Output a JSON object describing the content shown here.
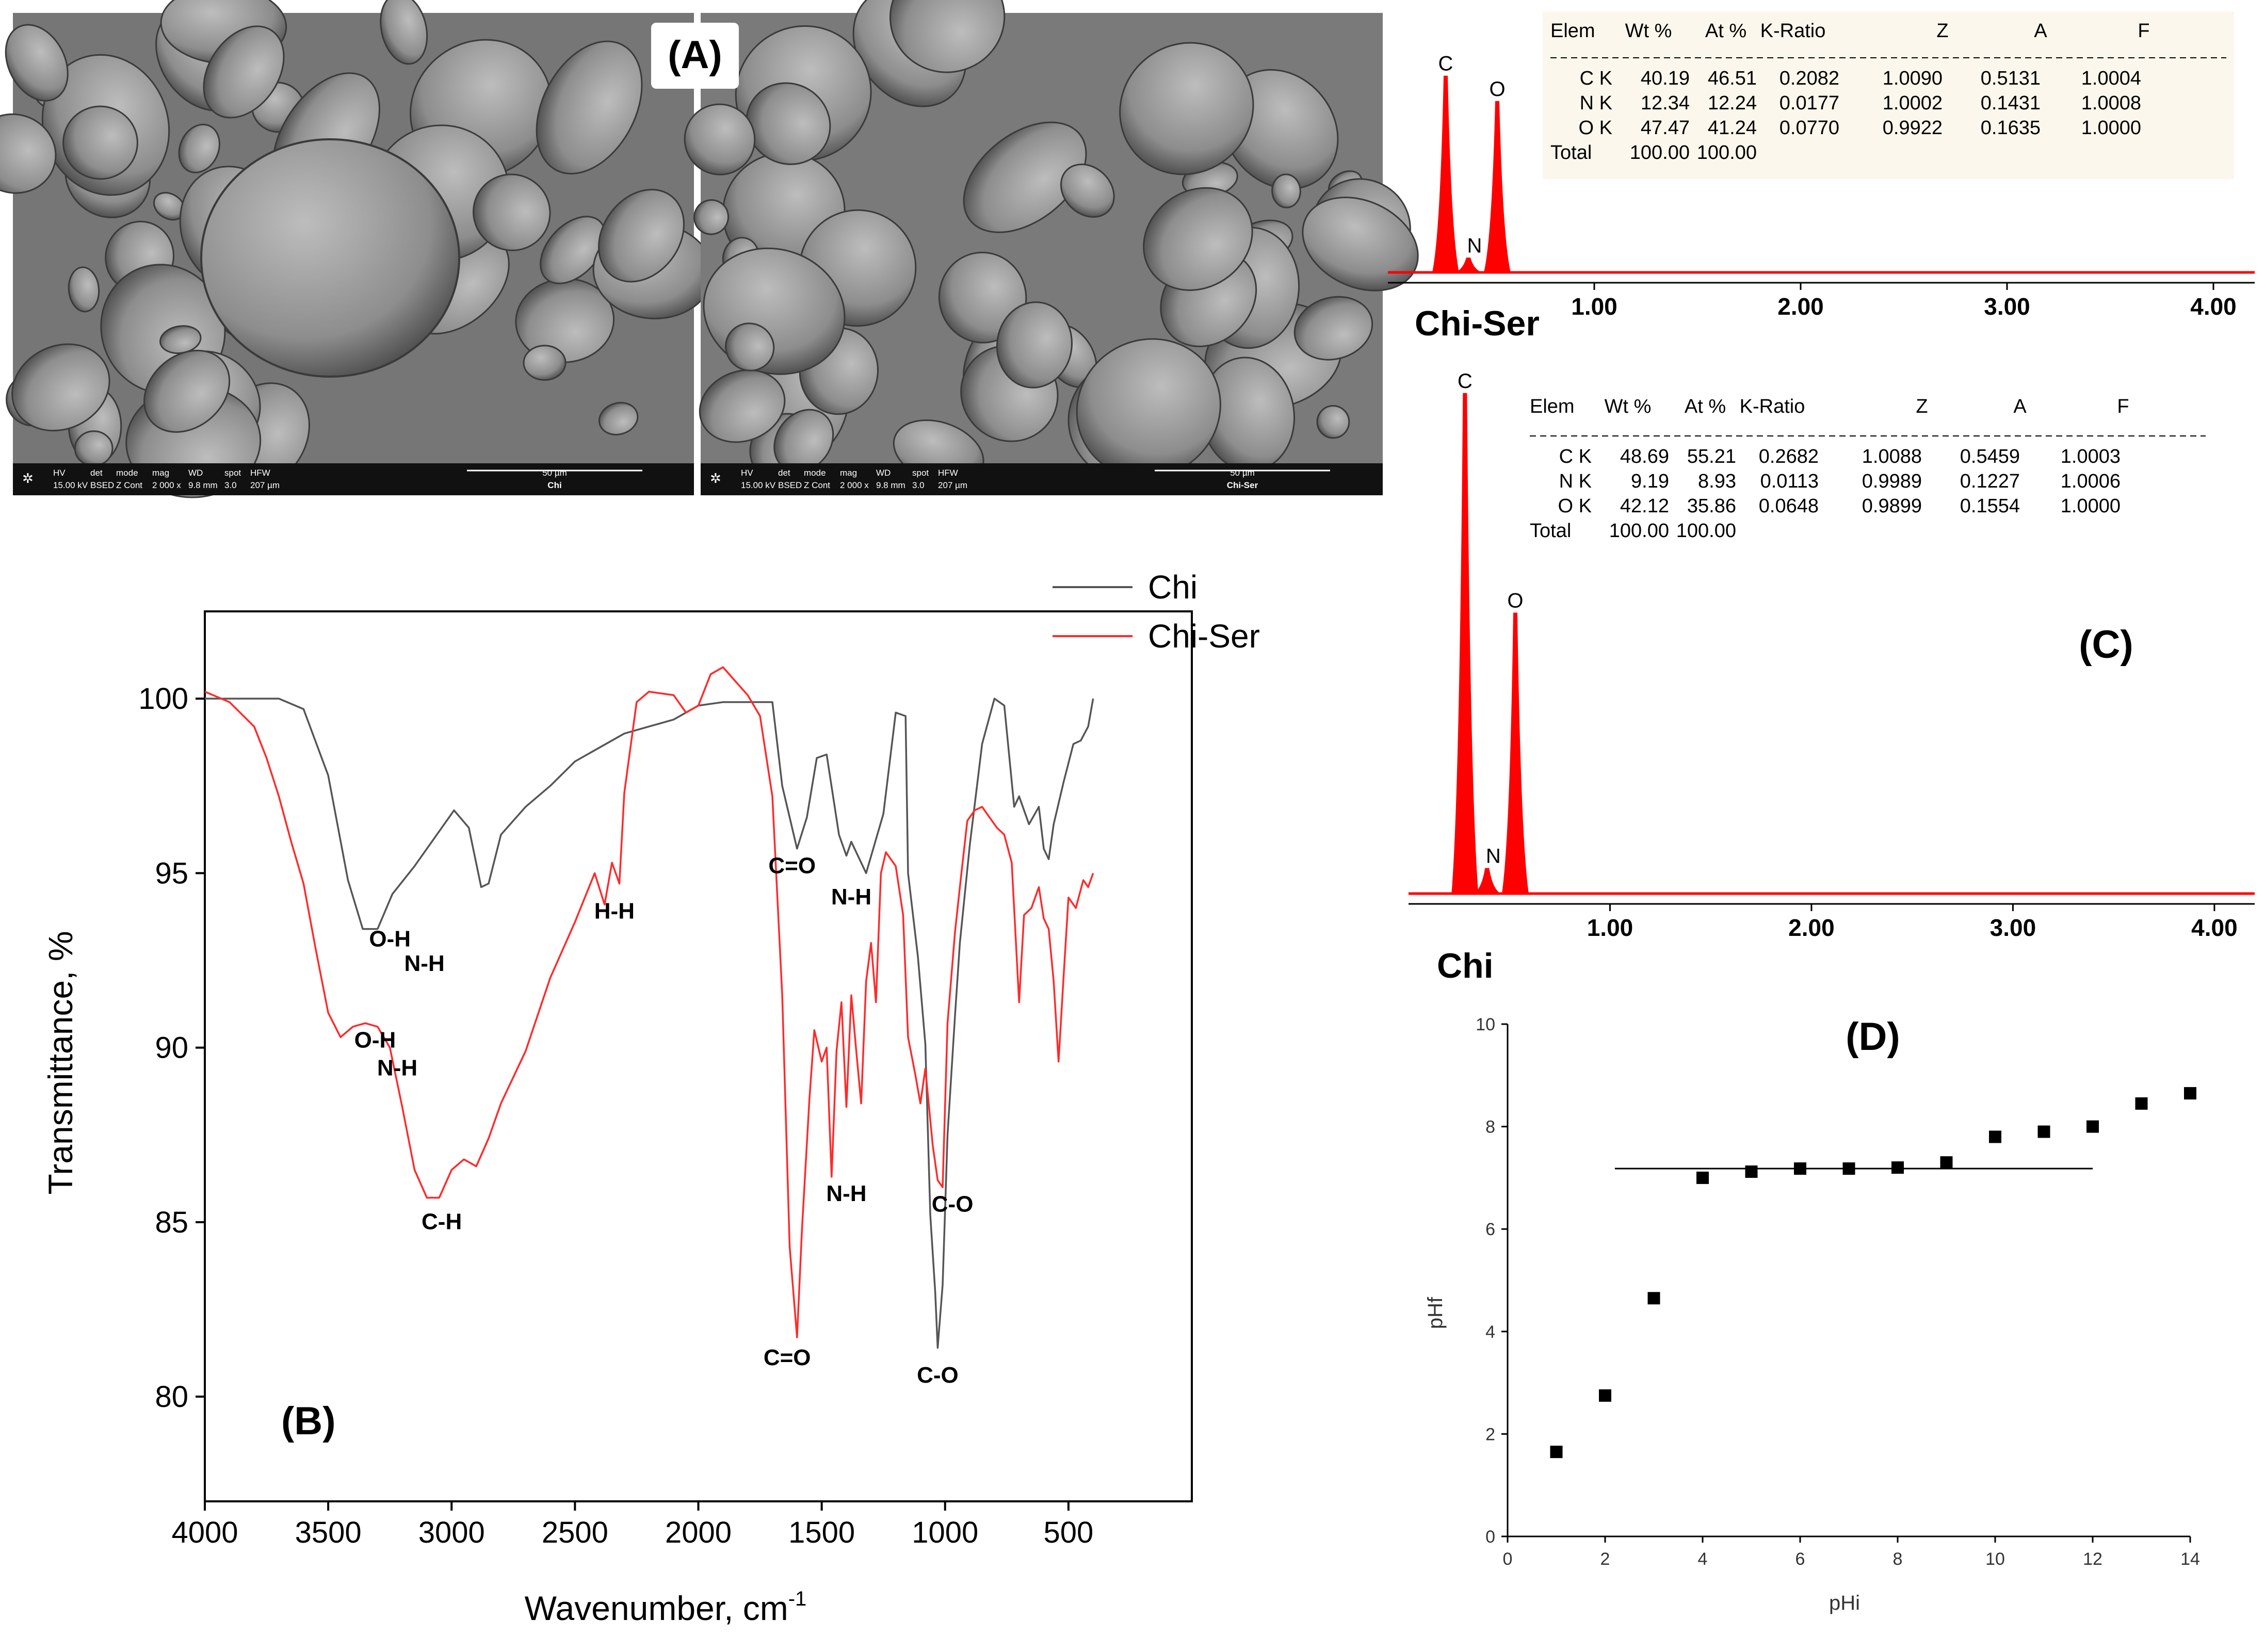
{
  "colors": {
    "chi": "#555555",
    "chi_ser": "#ff2a2a",
    "edx": "#ff0000",
    "axis": "#000000"
  },
  "panel_a": {
    "label": "(A)",
    "images": [
      {
        "hv": "HV",
        "hv_val": "15.00 kV",
        "det": "det",
        "det_val": "BSED",
        "mode": "mode",
        "mode_val": "Z Cont",
        "mag": "mag",
        "mag_val": "2 000 x",
        "wd": "WD",
        "wd_val": "9.8 mm",
        "spot": "spot",
        "spot_val": "3.0",
        "hfw": "HFW",
        "hfw_val": "207 µm",
        "scale": "50 µm",
        "name": "Chi"
      },
      {
        "hv": "HV",
        "hv_val": "15.00 kV",
        "det": "det",
        "det_val": "BSED",
        "mode": "mode",
        "mode_val": "Z Cont",
        "mag": "mag",
        "mag_val": "2 000 x",
        "wd": "WD",
        "wd_val": "9.8 mm",
        "spot": "spot",
        "spot_val": "3.0",
        "hfw": "HFW",
        "hfw_val": "207 µm",
        "scale": "50 µm",
        "name": "Chi-Ser"
      }
    ]
  },
  "chart_data": [
    {
      "type": "line",
      "panel": "(B)",
      "xlabel": "Wavenumber, cm",
      "xlabel_sup": "-1",
      "ylabel": "Transmittance, %",
      "xlim": [
        4000,
        0
      ],
      "ylim": [
        77,
        102.5
      ],
      "xticks": [
        4000,
        3500,
        3000,
        2500,
        2000,
        1500,
        1000,
        500
      ],
      "yticks": [
        80,
        85,
        90,
        95,
        100
      ],
      "legend": "top-right",
      "series": [
        {
          "name": "Chi",
          "points": [
            [
              4000,
              100
            ],
            [
              3700,
              100
            ],
            [
              3600,
              99.7
            ],
            [
              3500,
              97.8
            ],
            [
              3420,
              94.8
            ],
            [
              3360,
              93.4
            ],
            [
              3300,
              93.4
            ],
            [
              3240,
              94.4
            ],
            [
              3150,
              95.2
            ],
            [
              3050,
              96.2
            ],
            [
              2990,
              96.8
            ],
            [
              2930,
              96.3
            ],
            [
              2880,
              94.6
            ],
            [
              2850,
              94.7
            ],
            [
              2800,
              96.1
            ],
            [
              2700,
              96.9
            ],
            [
              2600,
              97.5
            ],
            [
              2500,
              98.2
            ],
            [
              2400,
              98.6
            ],
            [
              2300,
              99.0
            ],
            [
              2200,
              99.2
            ],
            [
              2100,
              99.4
            ],
            [
              2000,
              99.8
            ],
            [
              1900,
              99.9
            ],
            [
              1700,
              99.9
            ],
            [
              1660,
              97.5
            ],
            [
              1600,
              95.7
            ],
            [
              1560,
              96.6
            ],
            [
              1520,
              98.3
            ],
            [
              1480,
              98.4
            ],
            [
              1430,
              96.1
            ],
            [
              1400,
              95.5
            ],
            [
              1380,
              95.9
            ],
            [
              1320,
              95.0
            ],
            [
              1250,
              96.7
            ],
            [
              1200,
              99.6
            ],
            [
              1160,
              99.5
            ],
            [
              1150,
              95.0
            ],
            [
              1110,
              92.6
            ],
            [
              1080,
              90.1
            ],
            [
              1060,
              85.2
            ],
            [
              1040,
              83.0
            ],
            [
              1030,
              81.4
            ],
            [
              1010,
              83.2
            ],
            [
              990,
              87.5
            ],
            [
              960,
              90.9
            ],
            [
              940,
              93.0
            ],
            [
              900,
              95.8
            ],
            [
              850,
              98.7
            ],
            [
              800,
              100.0
            ],
            [
              760,
              99.8
            ],
            [
              720,
              96.9
            ],
            [
              700,
              97.2
            ],
            [
              660,
              96.4
            ],
            [
              620,
              96.9
            ],
            [
              600,
              95.7
            ],
            [
              580,
              95.4
            ],
            [
              560,
              96.4
            ],
            [
              520,
              97.6
            ],
            [
              480,
              98.7
            ],
            [
              450,
              98.8
            ],
            [
              420,
              99.2
            ],
            [
              400,
              100.0
            ]
          ]
        },
        {
          "name": "Chi-Ser",
          "points": [
            [
              4000,
              100.2
            ],
            [
              3900,
              99.9
            ],
            [
              3800,
              99.2
            ],
            [
              3750,
              98.3
            ],
            [
              3700,
              97.2
            ],
            [
              3650,
              95.9
            ],
            [
              3600,
              94.7
            ],
            [
              3550,
              92.8
            ],
            [
              3500,
              91.0
            ],
            [
              3450,
              90.3
            ],
            [
              3400,
              90.6
            ],
            [
              3350,
              90.7
            ],
            [
              3300,
              90.6
            ],
            [
              3250,
              90.0
            ],
            [
              3200,
              88.3
            ],
            [
              3150,
              86.5
            ],
            [
              3100,
              85.7
            ],
            [
              3050,
              85.7
            ],
            [
              3000,
              86.5
            ],
            [
              2950,
              86.8
            ],
            [
              2900,
              86.6
            ],
            [
              2850,
              87.4
            ],
            [
              2800,
              88.4
            ],
            [
              2700,
              89.9
            ],
            [
              2600,
              92.0
            ],
            [
              2500,
              93.6
            ],
            [
              2420,
              95.0
            ],
            [
              2380,
              94.1
            ],
            [
              2350,
              95.3
            ],
            [
              2320,
              94.7
            ],
            [
              2300,
              97.3
            ],
            [
              2250,
              99.9
            ],
            [
              2200,
              100.2
            ],
            [
              2100,
              100.1
            ],
            [
              2050,
              99.6
            ],
            [
              2000,
              99.8
            ],
            [
              1950,
              100.7
            ],
            [
              1900,
              100.9
            ],
            [
              1850,
              100.5
            ],
            [
              1800,
              100.1
            ],
            [
              1750,
              99.5
            ],
            [
              1700,
              97.2
            ],
            [
              1660,
              91.5
            ],
            [
              1630,
              84.3
            ],
            [
              1600,
              81.7
            ],
            [
              1580,
              84.8
            ],
            [
              1550,
              88.5
            ],
            [
              1530,
              90.5
            ],
            [
              1500,
              89.6
            ],
            [
              1480,
              90.0
            ],
            [
              1460,
              86.3
            ],
            [
              1440,
              89.9
            ],
            [
              1420,
              91.3
            ],
            [
              1400,
              88.3
            ],
            [
              1380,
              91.5
            ],
            [
              1360,
              89.9
            ],
            [
              1340,
              88.4
            ],
            [
              1320,
              91.9
            ],
            [
              1300,
              93.0
            ],
            [
              1280,
              91.3
            ],
            [
              1260,
              95.0
            ],
            [
              1240,
              95.6
            ],
            [
              1200,
              95.2
            ],
            [
              1170,
              93.8
            ],
            [
              1150,
              90.3
            ],
            [
              1120,
              89.2
            ],
            [
              1100,
              88.4
            ],
            [
              1080,
              89.4
            ],
            [
              1050,
              87.2
            ],
            [
              1030,
              86.2
            ],
            [
              1010,
              86.0
            ],
            [
              990,
              90.7
            ],
            [
              960,
              93.3
            ],
            [
              940,
              94.6
            ],
            [
              910,
              96.5
            ],
            [
              880,
              96.8
            ],
            [
              850,
              96.9
            ],
            [
              820,
              96.6
            ],
            [
              790,
              96.3
            ],
            [
              760,
              96.1
            ],
            [
              730,
              95.3
            ],
            [
              700,
              91.3
            ],
            [
              680,
              93.8
            ],
            [
              650,
              94.0
            ],
            [
              620,
              94.6
            ],
            [
              600,
              93.7
            ],
            [
              580,
              93.4
            ],
            [
              560,
              91.9
            ],
            [
              540,
              89.6
            ],
            [
              520,
              92.0
            ],
            [
              500,
              94.3
            ],
            [
              470,
              94.0
            ],
            [
              440,
              94.8
            ],
            [
              420,
              94.6
            ],
            [
              400,
              95.0
            ]
          ]
        }
      ],
      "annotations": [
        {
          "text": "O-H",
          "x": 3250,
          "y": 92.9
        },
        {
          "text": "N-H",
          "x": 3110,
          "y": 92.2
        },
        {
          "text": "O-H",
          "x": 3310,
          "y": 90.0
        },
        {
          "text": "N-H",
          "x": 3220,
          "y": 89.2
        },
        {
          "text": "C-H",
          "x": 3040,
          "y": 84.8
        },
        {
          "text": "H-H",
          "x": 2340,
          "y": 93.7
        },
        {
          "text": "C=O",
          "x": 1620,
          "y": 95.0
        },
        {
          "text": "N-H",
          "x": 1380,
          "y": 94.1
        },
        {
          "text": "N-H",
          "x": 1400,
          "y": 85.6
        },
        {
          "text": "C=O",
          "x": 1640,
          "y": 80.9
        },
        {
          "text": "C-O",
          "x": 1030,
          "y": 80.4
        },
        {
          "text": "C-O",
          "x": 970,
          "y": 85.3
        }
      ]
    },
    {
      "type": "bar",
      "panel": "EDX Chi-Ser",
      "sample": "Chi-Ser",
      "xlim": [
        0,
        4.2
      ],
      "xticks": [
        "1.00",
        "2.00",
        "3.00",
        "4.00"
      ],
      "peaks": [
        {
          "label": "C",
          "energy": 0.28,
          "height": 0.93
        },
        {
          "label": "N",
          "energy": 0.39,
          "height": 0.07
        },
        {
          "label": "O",
          "energy": 0.53,
          "height": 0.81
        }
      ],
      "table": {
        "headers": [
          "Elem",
          "Wt %",
          "At %",
          "K-Ratio",
          "Z",
          "A",
          "F"
        ],
        "rows": [
          [
            "C K",
            "40.19",
            "46.51",
            "0.2082",
            "1.0090",
            "0.5131",
            "1.0004"
          ],
          [
            "N K",
            "12.34",
            "12.24",
            "0.0177",
            "1.0002",
            "0.1431",
            "1.0008"
          ],
          [
            "O K",
            "47.47",
            "41.24",
            "0.0770",
            "0.9922",
            "0.1635",
            "1.0000"
          ],
          [
            "Total",
            "100.00",
            "100.00",
            "",
            "",
            "",
            ""
          ]
        ]
      }
    },
    {
      "type": "bar",
      "panel": "(C)",
      "sample": "Chi",
      "xlim": [
        0,
        4.2
      ],
      "xticks": [
        "1.00",
        "2.00",
        "3.00",
        "4.00"
      ],
      "peaks": [
        {
          "label": "C",
          "energy": 0.28,
          "height": 0.98
        },
        {
          "label": "N",
          "energy": 0.39,
          "height": 0.05
        },
        {
          "label": "O",
          "energy": 0.53,
          "height": 0.55
        }
      ],
      "table": {
        "headers": [
          "Elem",
          "Wt %",
          "At %",
          "K-Ratio",
          "Z",
          "A",
          "F"
        ],
        "rows": [
          [
            "C K",
            "48.69",
            "55.21",
            "0.2682",
            "1.0088",
            "0.5459",
            "1.0003"
          ],
          [
            "N K",
            "9.19",
            "8.93",
            "0.0113",
            "0.9989",
            "0.1227",
            "1.0006"
          ],
          [
            "O K",
            "42.12",
            "35.86",
            "0.0648",
            "0.9899",
            "0.1554",
            "1.0000"
          ],
          [
            "Total",
            "100.00",
            "100.00",
            "",
            "",
            "",
            ""
          ]
        ]
      }
    },
    {
      "type": "scatter",
      "panel": "(D)",
      "xlabel": "pHi",
      "ylabel": "pHf",
      "xlim": [
        0,
        14
      ],
      "ylim": [
        0,
        10
      ],
      "xticks": [
        0,
        2,
        4,
        6,
        8,
        10,
        12,
        14
      ],
      "yticks": [
        0,
        2,
        4,
        6,
        8,
        10
      ],
      "points": [
        [
          1,
          1.65
        ],
        [
          2,
          2.75
        ],
        [
          3,
          4.65
        ],
        [
          4,
          7.0
        ],
        [
          5,
          7.12
        ],
        [
          6,
          7.18
        ],
        [
          7,
          7.18
        ],
        [
          8,
          7.2
        ],
        [
          9,
          7.3
        ],
        [
          10,
          7.8
        ],
        [
          11,
          7.9
        ],
        [
          12,
          8.0
        ],
        [
          13,
          8.45
        ],
        [
          14,
          8.65
        ]
      ],
      "plateau": {
        "y": 7.18,
        "x": [
          2.2,
          12.0
        ]
      }
    }
  ]
}
